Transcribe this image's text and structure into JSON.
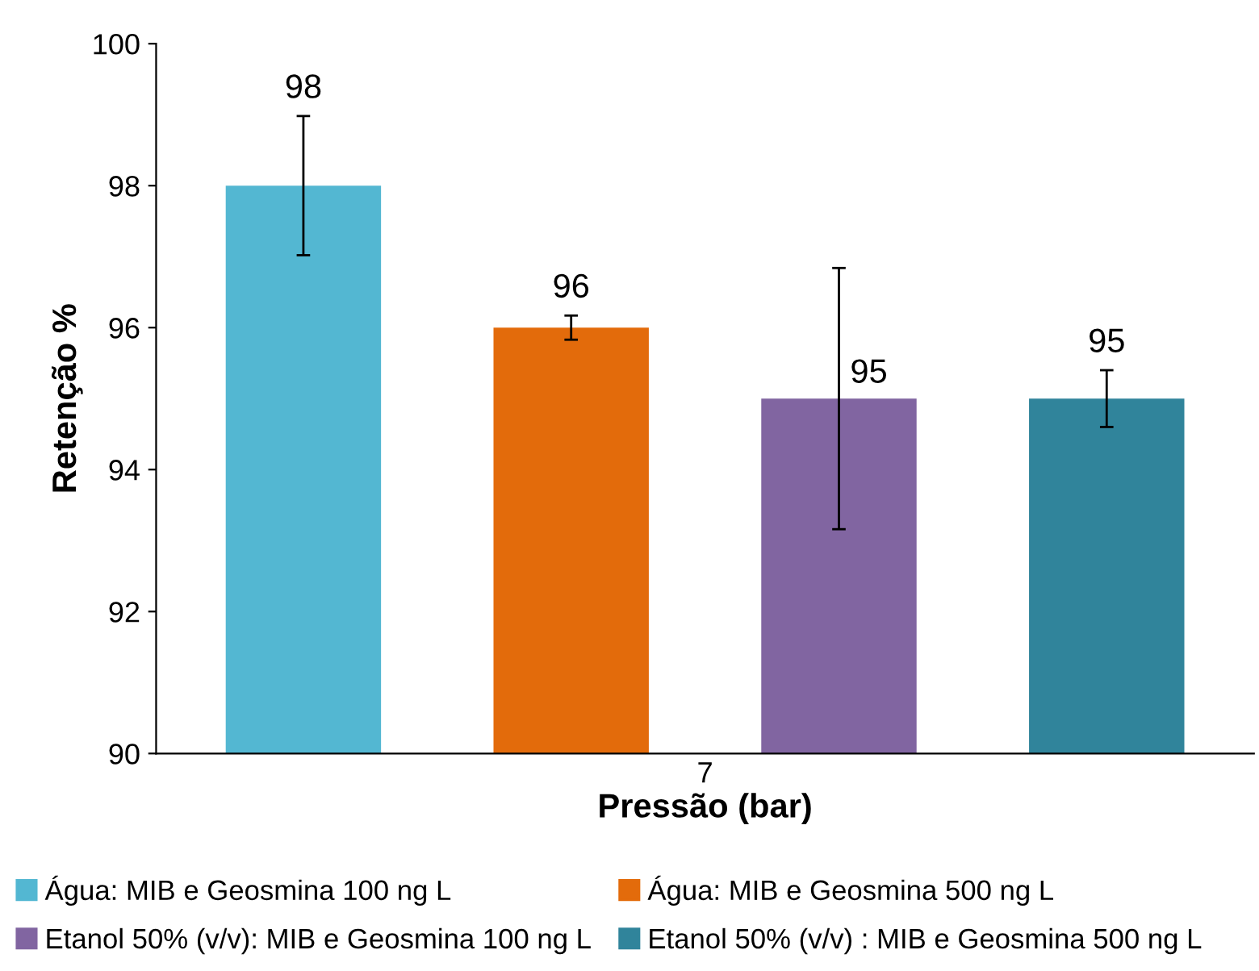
{
  "chart_data": {
    "type": "bar",
    "categories": [
      "7"
    ],
    "xlabel": "Pressão (bar)",
    "ylabel": "Retenção %",
    "series": [
      {
        "name": "Água: MIB e Geosmina 100 ng L",
        "color": "#53b7d2",
        "values": [
          98.0
        ],
        "errors": [
          0.98
        ]
      },
      {
        "name": "Água: MIB e Geosmina 500 ng L",
        "color": "#e36b0b",
        "values": [
          96.0
        ],
        "errors": [
          0.17
        ]
      },
      {
        "name": "Etanol 50% (v/v): MIB e Geosmina 100 ng L",
        "color": "#8165a1",
        "values": [
          95.0
        ],
        "errors": [
          1.84
        ]
      },
      {
        "name": "Etanol 50% (v/v) : MIB e Geosmina 500 ng L",
        "color": "#30849b",
        "values": [
          95.0
        ],
        "errors": [
          0.4
        ]
      }
    ],
    "ylim": [
      90,
      100
    ],
    "yticks": [
      90,
      92,
      94,
      96,
      98,
      100
    ],
    "grid": false,
    "legend": "bottom",
    "data_labels": true
  }
}
